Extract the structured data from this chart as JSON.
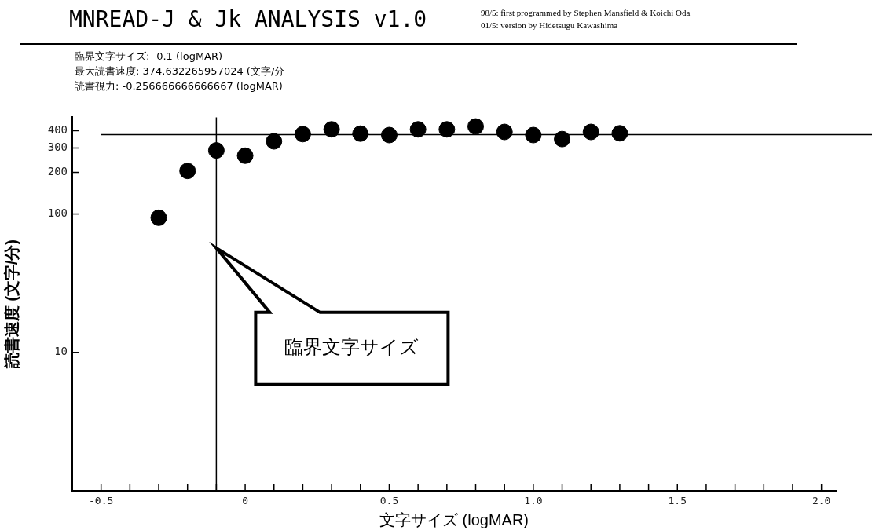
{
  "chart_data": {
    "type": "scatter",
    "title": "MNREAD-J & Jk ANALYSIS v1.0",
    "xlabel": "文字サイズ (logMAR)",
    "ylabel": "読書速度 (文字/分)",
    "annotations": [
      "98/5: first programmed by Stephen Mansfield & Koichi Oda",
      "01/5: version by Hidetsugu Kawashima",
      "臨界文字サイズ: -0.1 (logMAR)",
      "最大読書速度: 374.632265957024 (文字/分",
      "読書視力: -0.256666666666667 (logMAR)",
      "臨界文字サイズ"
    ],
    "x": [
      -0.3,
      -0.2,
      -0.1,
      0,
      0.1,
      0.2,
      0.3,
      0.4,
      0.5,
      0.6,
      0.7,
      0.8,
      0.9,
      1.0,
      1.1,
      1.2,
      1.3
    ],
    "values": [
      94,
      205,
      288,
      264,
      335,
      378,
      409,
      381,
      372,
      409,
      409,
      429,
      392,
      372,
      348,
      392,
      383
    ],
    "color": "#000000",
    "marker": "circle",
    "log": "y",
    "grid": false,
    "xlim": [
      -0.6,
      2.05
    ],
    "xticks": [
      -0.5,
      {
        "value": -0.4,
        "label": null
      },
      {
        "value": -0.3,
        "label": null
      },
      {
        "value": -0.2,
        "label": null
      },
      {
        "value": -0.1,
        "label": null
      },
      0,
      {
        "value": 0.1,
        "label": null
      },
      {
        "value": 0.2,
        "label": null
      },
      {
        "value": 0.3,
        "label": null
      },
      {
        "value": 0.4,
        "label": null
      },
      0.5,
      {
        "value": 0.6,
        "label": null
      },
      {
        "value": 0.7,
        "label": null
      },
      {
        "value": 0.8,
        "label": null
      },
      {
        "value": 0.9,
        "label": null
      },
      {
        "value": 1,
        "label": "1.0"
      },
      {
        "value": 1.1,
        "label": null
      },
      {
        "value": 1.2,
        "label": null
      },
      {
        "value": 1.3,
        "label": null
      },
      {
        "value": 1.4,
        "label": null
      },
      1.5,
      {
        "value": 1.6,
        "label": null
      },
      {
        "value": 1.7,
        "label": null
      },
      {
        "value": 1.8,
        "label": null
      },
      {
        "value": 1.9,
        "label": null
      },
      {
        "value": 2,
        "label": "2.0"
      }
    ],
    "ylim": [
      1,
      500
    ],
    "yticks": [
      10,
      100,
      200,
      300,
      400
    ],
    "ref_lines": [
      {
        "axis": "x",
        "value": -0.1,
        "color": "#000000"
      },
      {
        "axis": "y",
        "value": 374.632265957024,
        "color": "#000000"
      }
    ]
  }
}
